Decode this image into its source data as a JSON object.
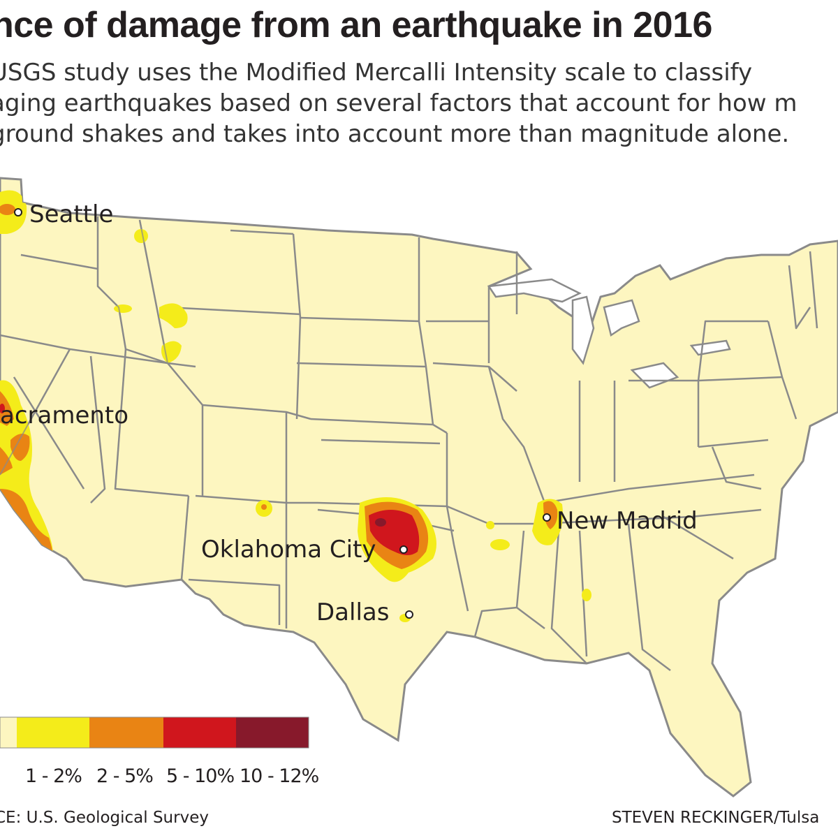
{
  "title": "nce of damage from an earthquake in 2016",
  "subtitle": [
    "USGS study uses the Modified Mercalli Intensity scale to classify",
    "aging earthquakes based on several factors that account for how m",
    "ground shakes and takes into account more than magnitude alone."
  ],
  "cities": [
    {
      "id": "seattle",
      "label": "Seattle"
    },
    {
      "id": "sacramento",
      "label": "acramento"
    },
    {
      "id": "oklahoma-city",
      "label": "Oklahoma City"
    },
    {
      "id": "dallas",
      "label": "Dallas"
    },
    {
      "id": "new-madrid",
      "label": "New Madrid"
    }
  ],
  "legend": {
    "categories": [
      {
        "label": "",
        "color": "#fdf6c0"
      },
      {
        "label": "1 - 2%",
        "color": "#f4ec1a"
      },
      {
        "label": "2 - 5%",
        "color": "#e98414"
      },
      {
        "label": "5 - 10%",
        "color": "#d0161d"
      },
      {
        "label": "10 - 12%",
        "color": "#87192b"
      }
    ]
  },
  "colors": {
    "land": "#fdf6c0",
    "border": "#8a8a8a",
    "level_1_2": "#f4ec1a",
    "level_2_5": "#e98414",
    "level_5_10": "#d0161d",
    "level_10_12": "#87192b"
  },
  "footer": {
    "source": "CE: U.S. Geological Survey",
    "credit": "STEVEN RECKINGER/Tulsa"
  }
}
